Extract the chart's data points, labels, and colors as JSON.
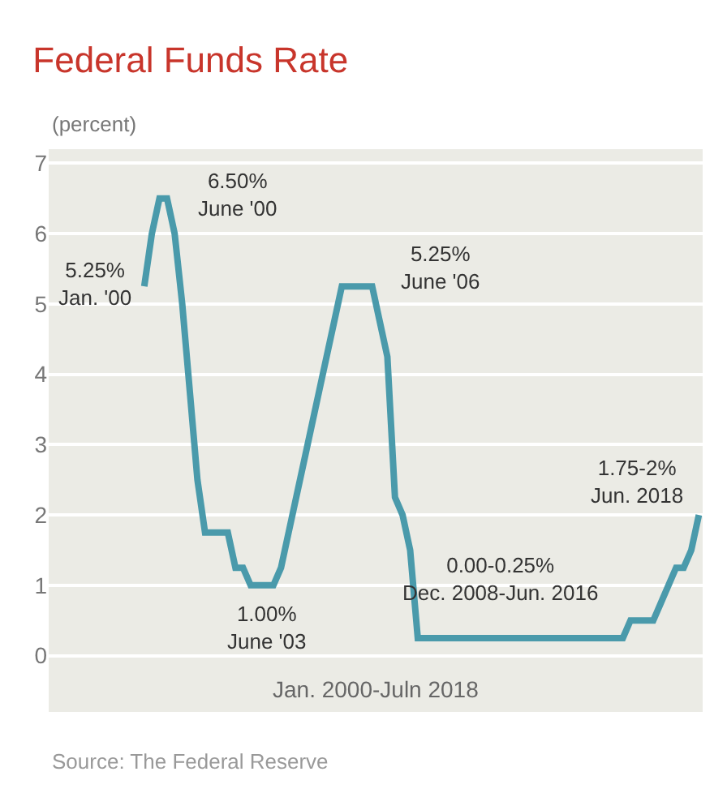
{
  "chart_data": {
    "type": "line",
    "title": "Federal Funds Rate",
    "ylabel": "(percent)",
    "xlabel": "Jan. 2000-Juln 2018",
    "categories": [
      null,
      null,
      null,
      null,
      null,
      null,
      null,
      null,
      null,
      null,
      null,
      null,
      null,
      null,
      null,
      null,
      null,
      null,
      null,
      null,
      null,
      null,
      null,
      null,
      null,
      null,
      null,
      null,
      null,
      null,
      null,
      null,
      null,
      null,
      null,
      null,
      null,
      null,
      null,
      null,
      null,
      null,
      null,
      null,
      null,
      null,
      null,
      null,
      null,
      null,
      null,
      null,
      null,
      null,
      null,
      null,
      null,
      null,
      null,
      null,
      null,
      null,
      null,
      null,
      null,
      null,
      null,
      null,
      null,
      null,
      null,
      null,
      null,
      null
    ],
    "series": [
      {
        "color": "#4a9aab",
        "values": [
          5.25,
          6.0,
          6.5,
          6.5,
          6.0,
          5.0,
          3.75,
          2.5,
          1.75,
          1.75,
          1.75,
          1.75,
          1.25,
          1.25,
          1.0,
          1.0,
          1.0,
          1.0,
          1.25,
          1.75,
          2.25,
          2.75,
          3.25,
          3.75,
          4.25,
          4.75,
          5.25,
          5.25,
          5.25,
          5.25,
          5.25,
          4.75,
          4.25,
          2.25,
          2.0,
          1.5,
          0.25,
          0.25,
          0.25,
          0.25,
          0.25,
          0.25,
          0.25,
          0.25,
          0.25,
          0.25,
          0.25,
          0.25,
          0.25,
          0.25,
          0.25,
          0.25,
          0.25,
          0.25,
          0.25,
          0.25,
          0.25,
          0.25,
          0.25,
          0.25,
          0.25,
          0.25,
          0.25,
          0.25,
          0.5,
          0.5,
          0.5,
          0.5,
          0.75,
          1.0,
          1.25,
          1.25,
          1.5,
          2.0
        ]
      }
    ],
    "ylim": [
      -0.8,
      7.2
    ],
    "yticks": [
      0,
      1,
      2,
      3,
      4,
      5,
      6,
      7
    ],
    "tick_labels": "y",
    "grid": "y",
    "marker": "none",
    "line_style": "solid",
    "annotations": [
      "6.50%\nJune '00",
      "5.25%\nJan. '00",
      "5.25%\nJune '06",
      "1.00%\nJune '03",
      "0.00-0.25%\nDec. 2008-Jun. 2016",
      "1.75-2%\nJun. 2018",
      "Source: The Federal Reserve"
    ]
  }
}
